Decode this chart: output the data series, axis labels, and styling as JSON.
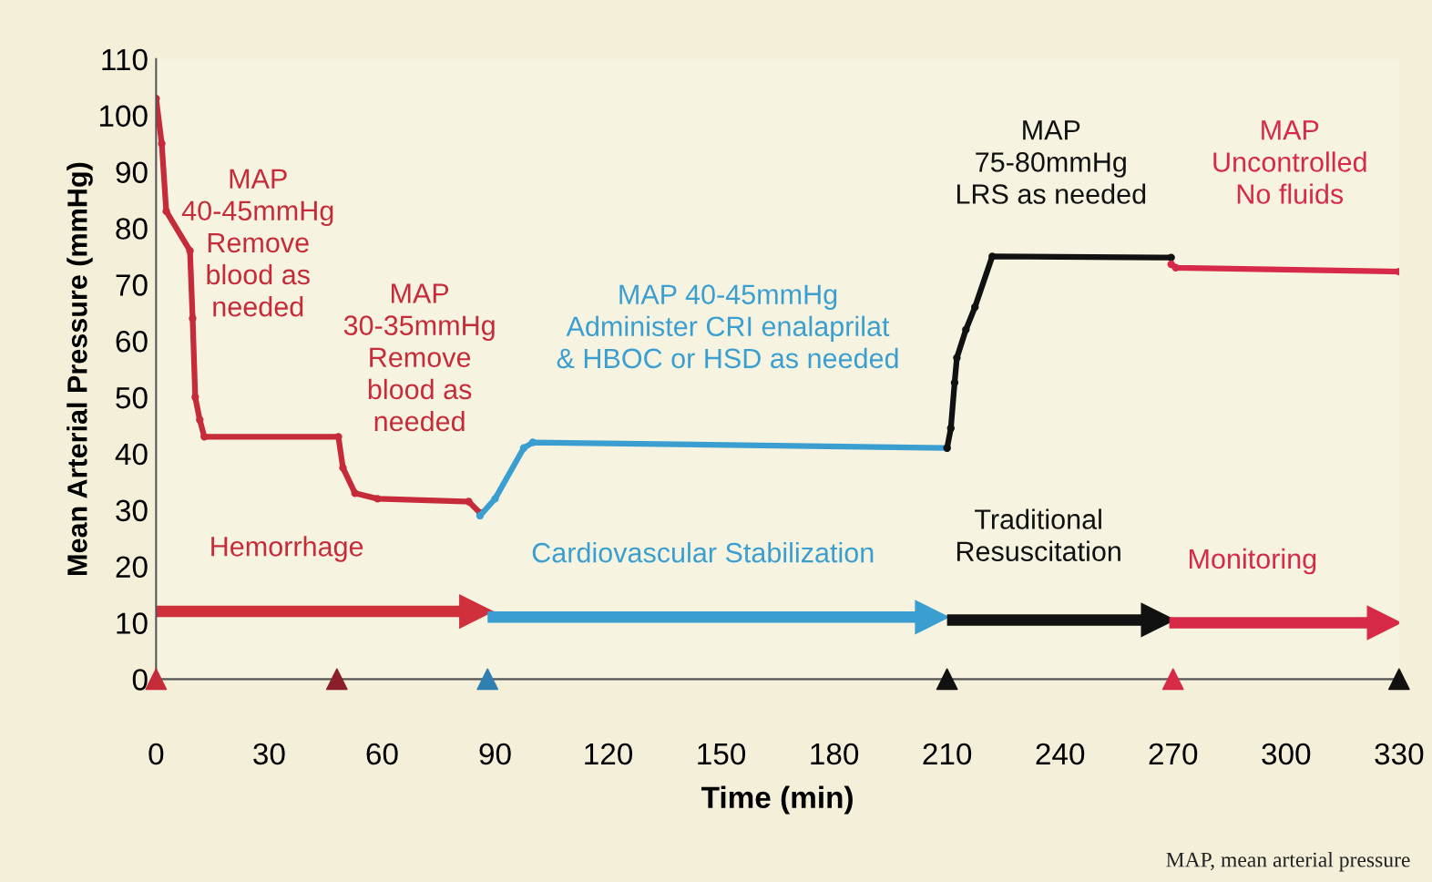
{
  "chart_data": {
    "type": "line",
    "xlabel": "Time (min)",
    "ylabel": "Mean Arterial Pressure (mmHg)",
    "xlim": [
      0,
      330
    ],
    "xticks": [
      0,
      30,
      60,
      90,
      120,
      150,
      180,
      210,
      240,
      270,
      300,
      330
    ],
    "ylim": [
      0,
      110
    ],
    "yticks": [
      0,
      10,
      20,
      30,
      40,
      50,
      60,
      70,
      80,
      90,
      100,
      110
    ],
    "grid": false,
    "legend": false,
    "series": [
      {
        "color": "#c62b3a",
        "marker": "circle",
        "x": [
          0,
          1.5,
          2.7,
          9,
          9.7,
          10.4,
          11.6,
          12.8,
          48.4,
          49.6,
          52.8,
          58.8,
          83,
          86
        ],
        "values": [
          103,
          95,
          83,
          76,
          64,
          50,
          46,
          43,
          43,
          37.5,
          33,
          32,
          31.5,
          29.5
        ]
      },
      {
        "color": "#3a9fd0",
        "marker": "circle",
        "x": [
          86,
          90,
          97.6,
          100,
          210
        ],
        "values": [
          29,
          32,
          41,
          42,
          41
        ]
      },
      {
        "color": "#111111",
        "marker": "circle",
        "x": [
          210,
          211,
          212,
          212.6,
          215,
          217.4,
          222,
          269.5
        ],
        "values": [
          41,
          44.5,
          52.6,
          57,
          62,
          66,
          75,
          74.8
        ]
      },
      {
        "color": "#d62a48",
        "marker": "circle",
        "x": [
          269.5,
          270.7,
          330
        ],
        "values": [
          73.6,
          73,
          72.3
        ]
      },
      {
        "type": "line",
        "color": "#d0303c",
        "marker": "triangle",
        "x": [
          0,
          85
        ],
        "values": [
          12,
          12
        ]
      },
      {
        "type": "line",
        "color": "#3a9fd0",
        "marker": "triangle",
        "x": [
          88,
          206
        ],
        "values": [
          11,
          11
        ]
      },
      {
        "type": "line",
        "color": "#111111",
        "marker": "triangle",
        "x": [
          210,
          266
        ],
        "values": [
          10.5,
          10.5
        ]
      },
      {
        "type": "line",
        "color": "#d62a48",
        "marker": "triangle",
        "x": [
          269,
          326
        ],
        "values": [
          10,
          10
        ]
      },
      {
        "type": "scatter",
        "marker": "triangle",
        "x": [
          0,
          48,
          88,
          210,
          270,
          330
        ],
        "values": [
          0,
          0,
          0,
          0,
          0,
          0
        ],
        "colors": [
          "#c62b3a",
          "#8a1f2a",
          "#2f7fb0",
          "#111111",
          "#d62a48",
          "#111111"
        ]
      }
    ],
    "annotations": [
      "MAP\n40-45mmHg\nRemove\nblood as\nneeded",
      "MAP\n30-35mmHg\nRemove\nblood as\nneeded",
      "MAP 40-45mmHg\nAdminister CRI enalaprilat\n& HBOC or HSD as needed",
      "MAP\n75-80mmHg\nLRS as needed",
      "MAP\nUncontrolled\nNo fluids",
      "Hemorrhage",
      "Cardiovascular Stabilization",
      "Traditional\nResuscitation",
      "Monitoring",
      "MAP, mean arterial pressure"
    ]
  }
}
